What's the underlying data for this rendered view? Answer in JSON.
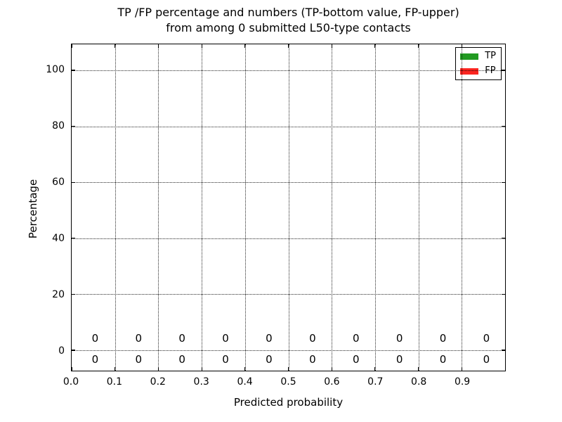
{
  "chart_data": {
    "type": "bar",
    "title_line1": "TP /FP percentage and numbers (TP-bottom value, FP-upper)",
    "title_line2": "from among 0 submitted L50-type contacts",
    "xlabel": "Predicted probability",
    "ylabel": "Percentage",
    "xlim": [
      0.0,
      1.0
    ],
    "ylim": [
      -7.3,
      109.3
    ],
    "xticks": [
      0.0,
      0.1,
      0.2,
      0.3,
      0.4,
      0.5,
      0.6,
      0.7,
      0.8,
      0.9
    ],
    "xtick_labels": [
      "0.0",
      "0.1",
      "0.2",
      "0.3",
      "0.4",
      "0.5",
      "0.6",
      "0.7",
      "0.8",
      "0.9"
    ],
    "yticks": [
      0,
      20,
      40,
      60,
      80,
      100
    ],
    "ytick_labels": [
      "0",
      "20",
      "40",
      "60",
      "80",
      "100"
    ],
    "grid": "dotted",
    "legend_position": "upper-right",
    "legend": [
      {
        "name": "TP",
        "color": "#219a21"
      },
      {
        "name": "FP",
        "color": "#fb2520"
      }
    ],
    "bin_centers": [
      0.0555,
      0.1555,
      0.2555,
      0.3555,
      0.4555,
      0.5555,
      0.6555,
      0.7555,
      0.8555,
      0.9555
    ],
    "series": [
      {
        "name": "FP",
        "row": "upper",
        "label_y": 4.5,
        "values": [
          0,
          0,
          0,
          0,
          0,
          0,
          0,
          0,
          0,
          0
        ]
      },
      {
        "name": "TP",
        "row": "bottom",
        "label_y": -3.1,
        "values": [
          0,
          0,
          0,
          0,
          0,
          0,
          0,
          0,
          0,
          0
        ]
      }
    ],
    "colors": {
      "background": "#ffffff",
      "axes": "#000000",
      "text": "#000000",
      "grid": "#000000"
    }
  }
}
